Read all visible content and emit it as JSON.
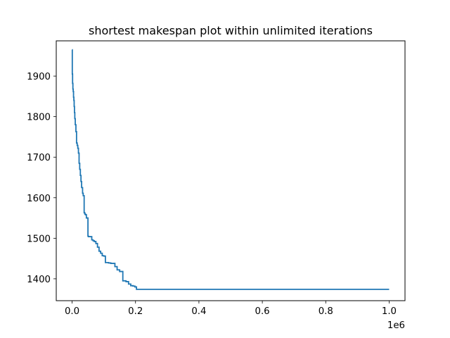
{
  "chart_data": {
    "type": "line",
    "title": "shortest makespan plot within unlimited iterations",
    "xlabel": "",
    "ylabel": "",
    "x_offset_text": "1e6",
    "xlim": [
      -50000,
      1050000
    ],
    "ylim": [
      1346,
      1987
    ],
    "x_ticks": [
      0,
      200000,
      400000,
      600000,
      800000,
      1000000
    ],
    "x_tick_labels": [
      "0.0",
      "0.2",
      "0.4",
      "0.6",
      "0.8",
      "1.0"
    ],
    "y_ticks": [
      1400,
      1500,
      1600,
      1700,
      1800,
      1900
    ],
    "y_tick_labels": [
      "1400",
      "1500",
      "1600",
      "1700",
      "1800",
      "1900"
    ],
    "grid": false,
    "legend": "none",
    "line_color": "#1f77b4",
    "series": [
      {
        "step": true,
        "x": [
          0,
          600,
          1500,
          2500,
          3500,
          4500,
          5500,
          6500,
          7500,
          8500,
          10000,
          12000,
          14000,
          16000,
          18000,
          20000,
          22000,
          24000,
          26000,
          28000,
          30000,
          33000,
          35000,
          38000,
          40000,
          42000,
          45000,
          50000,
          52000,
          55000,
          58000,
          62000,
          66000,
          70000,
          75000,
          80000,
          85000,
          90000,
          95000,
          100000,
          105000,
          115000,
          122000,
          128000,
          135000,
          142000,
          150000,
          160000,
          170000,
          178000,
          185000,
          192000,
          198000,
          203000,
          1000000
        ],
        "y": [
          1965,
          1905,
          1882,
          1868,
          1862,
          1848,
          1840,
          1825,
          1810,
          1795,
          1780,
          1763,
          1735,
          1729,
          1722,
          1710,
          1685,
          1670,
          1655,
          1640,
          1625,
          1611,
          1605,
          1563,
          1560,
          1558,
          1550,
          1505,
          1504,
          1504,
          1504,
          1496,
          1494,
          1492,
          1487,
          1478,
          1468,
          1463,
          1457,
          1456,
          1440,
          1439,
          1438,
          1438,
          1430,
          1422,
          1418,
          1395,
          1393,
          1387,
          1383,
          1382,
          1380,
          1374,
          1374
        ]
      }
    ]
  }
}
